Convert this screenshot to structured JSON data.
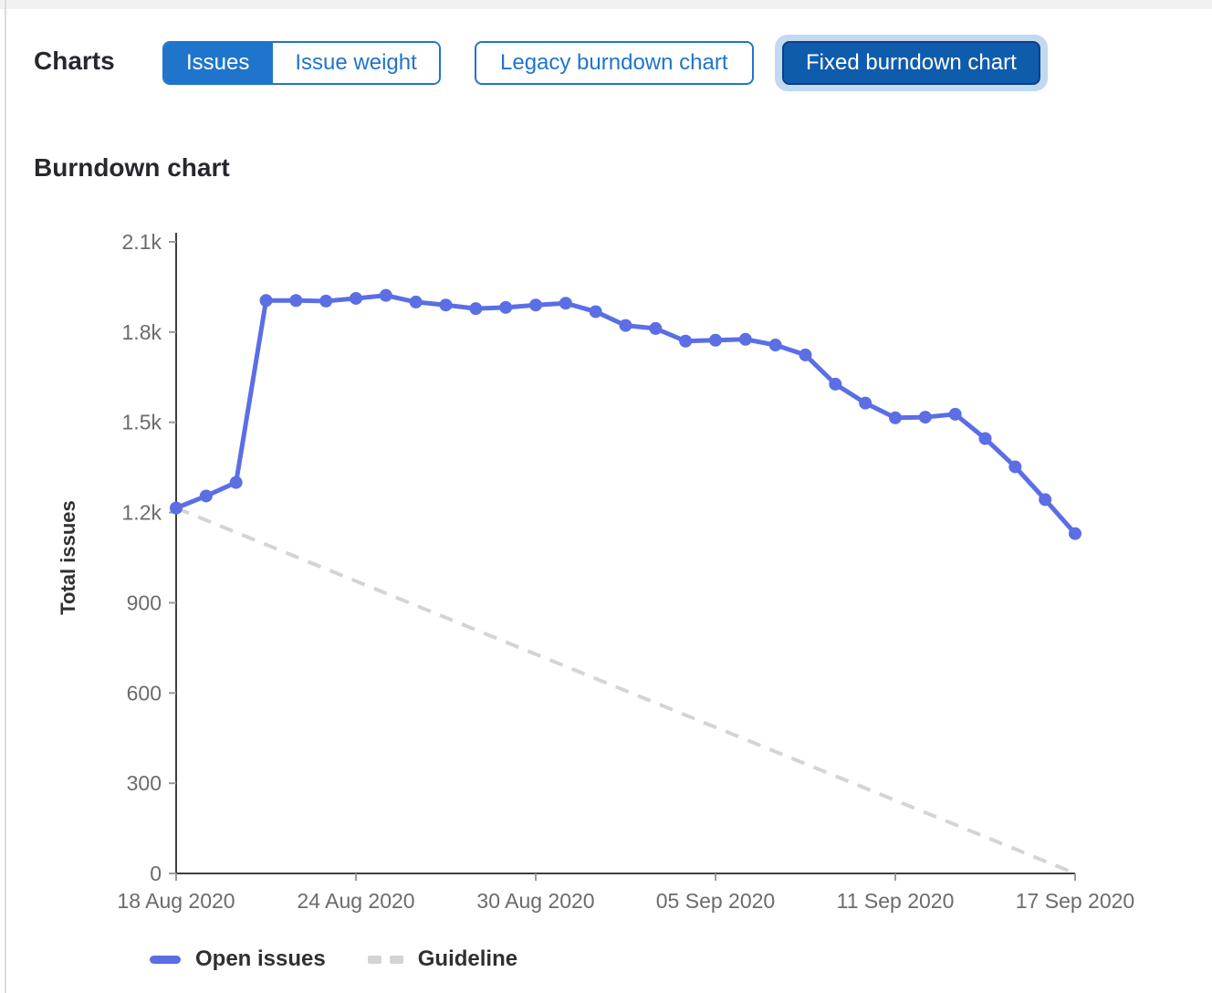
{
  "header": {
    "charts_label": "Charts",
    "metric_toggle": {
      "issues_label": "Issues",
      "issue_weight_label": "Issue weight",
      "selected": "Issues"
    },
    "chart_type_toggle": {
      "legacy_label": "Legacy burndown chart",
      "fixed_label": "Fixed burndown chart",
      "selected": "Fixed burndown chart"
    }
  },
  "section": {
    "title": "Burndown chart"
  },
  "chart_data": {
    "type": "line",
    "title": "Burndown chart",
    "xlabel": "",
    "ylabel": "Total issues",
    "ylim": [
      0,
      2100
    ],
    "grid": false,
    "yticks": {
      "values": [
        0,
        300,
        600,
        900,
        1200,
        1500,
        1800,
        2100
      ],
      "labels": [
        "0",
        "300",
        "600",
        "900",
        "1.2k",
        "1.5k",
        "1.8k",
        "2.1k"
      ]
    },
    "xticks": {
      "day_index": [
        0,
        6,
        12,
        18,
        24,
        30
      ],
      "labels": [
        "18 Aug 2020",
        "24 Aug 2020",
        "30 Aug 2020",
        "05 Sep 2020",
        "11 Sep 2020",
        "17 Sep 2020"
      ]
    },
    "days_total": 30,
    "series": [
      {
        "name": "Open issues",
        "style": "solid",
        "color": "#5b6ee4",
        "values": [
          1215,
          1255,
          1300,
          1905,
          1905,
          1903,
          1912,
          1922,
          1900,
          1890,
          1878,
          1882,
          1890,
          1896,
          1868,
          1822,
          1812,
          1770,
          1773,
          1776,
          1757,
          1724,
          1627,
          1564,
          1515,
          1517,
          1527,
          1446,
          1352,
          1243,
          1130
        ]
      },
      {
        "name": "Guideline",
        "style": "dashed",
        "color": "#d4d4d4",
        "day_index": [
          0,
          30
        ],
        "values": [
          1215,
          0
        ]
      }
    ],
    "legend": {
      "position": "bottom",
      "items": [
        "Open issues",
        "Guideline"
      ]
    }
  },
  "colors": {
    "accent_blue": "#1f75cb",
    "selected_button_bg": "#0f5cad",
    "selected_button_border": "#0a4186",
    "selected_button_halo": "#c3d8f1",
    "line_blue": "#5b6ee4",
    "guideline_gray": "#d4d4d4",
    "axis_line": "#3f3f3f",
    "tick_mark": "#9a9a9a",
    "tick_label": "#6b6b6b"
  }
}
